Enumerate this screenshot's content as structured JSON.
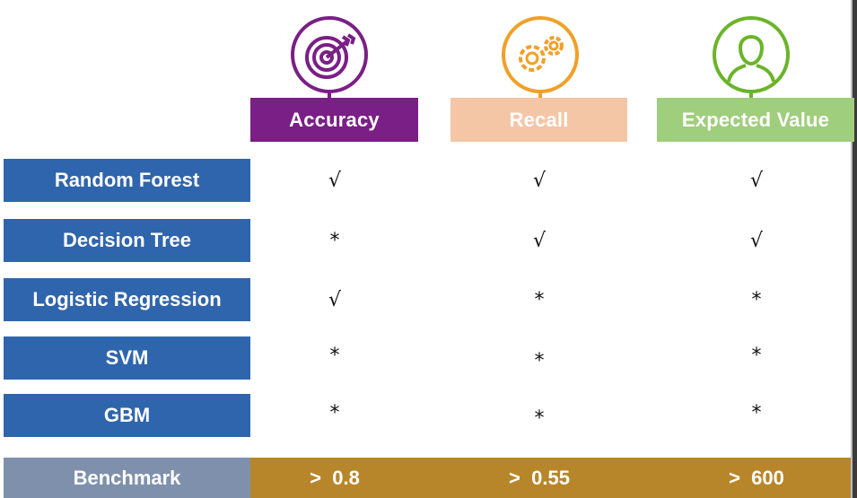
{
  "columns": [
    {
      "label": "Accuracy",
      "color": "#7a1f86",
      "icon": "target-icon",
      "icon_color": "#7a1f86"
    },
    {
      "label": "Recall",
      "color": "#f4c6a6",
      "icon": "gears-icon",
      "icon_color": "#f0a028"
    },
    {
      "label": "Expected Value",
      "color": "#9fce7c",
      "icon": "user-icon",
      "icon_color": "#6ab42a"
    }
  ],
  "rows": [
    {
      "label": "Random Forest",
      "marks": [
        "√",
        "√",
        "√"
      ]
    },
    {
      "label": "Decision Tree",
      "marks": [
        "*",
        "√",
        "√"
      ]
    },
    {
      "label": "Logistic Regression",
      "marks": [
        "√",
        "*",
        "*"
      ]
    },
    {
      "label": "SVM",
      "marks": [
        "*",
        "*",
        "*"
      ]
    },
    {
      "label": "GBM",
      "marks": [
        "*",
        "*",
        "*"
      ]
    }
  ],
  "benchmark": {
    "label": "Benchmark",
    "label_color": "#7f90ad",
    "bar_color": "#b8862a",
    "values": [
      ">  0.8",
      ">  0.55",
      ">  600"
    ]
  },
  "row_label_color": "#2f65ac"
}
